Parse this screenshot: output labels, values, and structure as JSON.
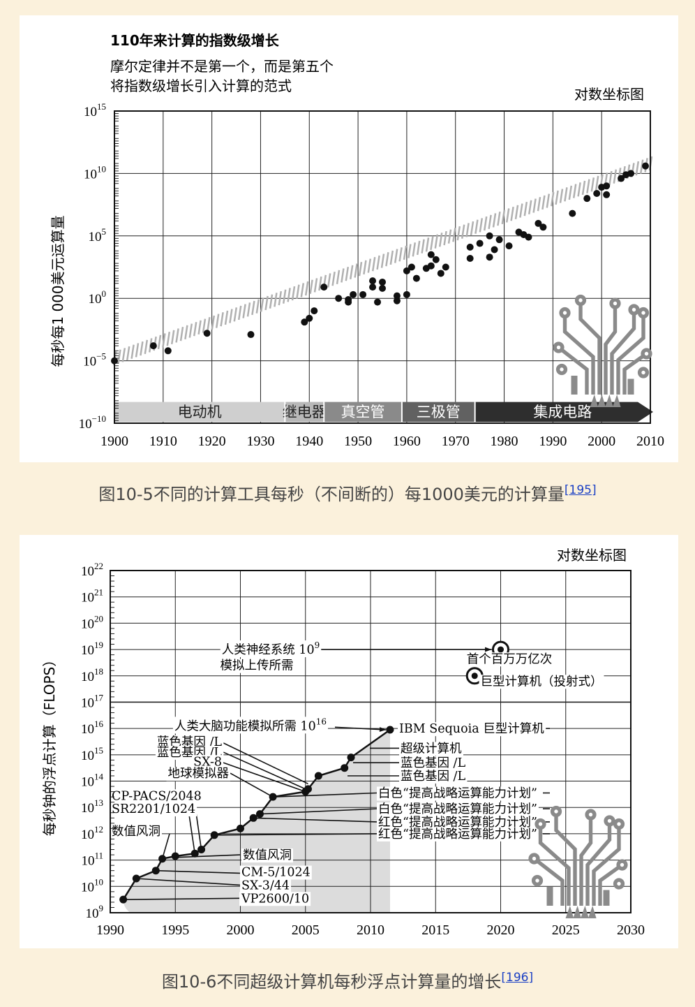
{
  "chart_data": [
    {
      "type": "scatter",
      "title": "110年来计算的指数级增长",
      "subtitle": [
        "摩尔定律并不是第一个，而是第五个",
        "将指数级增长引入计算的范式"
      ],
      "scale_note": "对数坐标图",
      "ylabel": "每秒每1 000美元运算量",
      "xlabel": "",
      "y_scale": "log",
      "grid": true,
      "xlim": [
        1900,
        2010
      ],
      "x_ticks": [
        "1900",
        "1910",
        "1920",
        "1930",
        "1940",
        "1950",
        "1960",
        "1970",
        "1980",
        "1990",
        "2000",
        "2010"
      ],
      "ylim_exp": [
        -10,
        15
      ],
      "y_ticks": [
        {
          "exp": 15,
          "label_base": "10",
          "label_exp": "15"
        },
        {
          "exp": 10,
          "label_base": "10",
          "label_exp": "10"
        },
        {
          "exp": 5,
          "label_base": "10",
          "label_exp": "5"
        },
        {
          "exp": 0,
          "label_base": "10",
          "label_exp": "0"
        },
        {
          "exp": -5,
          "label_base": "10",
          "label_exp": "−5"
        },
        {
          "exp": -10,
          "label_base": "10",
          "label_exp": "−10"
        }
      ],
      "trend_exp": {
        "x": [
          1900,
          2010
        ],
        "y": [
          -4.8,
          10.8
        ]
      },
      "points_log10": [
        [
          1900,
          -5.0
        ],
        [
          1908,
          -3.8
        ],
        [
          1911,
          -4.2
        ],
        [
          1919,
          -2.8
        ],
        [
          1928,
          -2.9
        ],
        [
          1939,
          -1.9
        ],
        [
          1940,
          -1.6
        ],
        [
          1941,
          -1.0
        ],
        [
          1943,
          0.9
        ],
        [
          1946,
          0.0
        ],
        [
          1948,
          -0.1
        ],
        [
          1948,
          -0.3
        ],
        [
          1949,
          0.3
        ],
        [
          1951,
          0.3
        ],
        [
          1953,
          0.9
        ],
        [
          1953,
          1.4
        ],
        [
          1954,
          -0.3
        ],
        [
          1955,
          0.8
        ],
        [
          1955,
          1.3
        ],
        [
          1958,
          -0.2
        ],
        [
          1958,
          0.2
        ],
        [
          1960,
          2.2
        ],
        [
          1960,
          0.3
        ],
        [
          1961,
          2.5
        ],
        [
          1962,
          1.6
        ],
        [
          1964,
          2.4
        ],
        [
          1965,
          2.6
        ],
        [
          1965,
          3.5
        ],
        [
          1966,
          3.1
        ],
        [
          1967,
          2.0
        ],
        [
          1968,
          2.5
        ],
        [
          1973,
          4.1
        ],
        [
          1973,
          3.2
        ],
        [
          1975,
          4.4
        ],
        [
          1977,
          3.3
        ],
        [
          1977,
          5.0
        ],
        [
          1978,
          3.9
        ],
        [
          1979,
          4.7
        ],
        [
          1981,
          4.2
        ],
        [
          1983,
          5.3
        ],
        [
          1984,
          5.1
        ],
        [
          1985,
          4.9
        ],
        [
          1987,
          6.0
        ],
        [
          1988,
          5.7
        ],
        [
          1994,
          6.8
        ],
        [
          1997,
          8.0
        ],
        [
          1999,
          8.4
        ],
        [
          2000,
          8.9
        ],
        [
          2001,
          8.3
        ],
        [
          2001,
          9.0
        ],
        [
          2004,
          9.6
        ],
        [
          2005,
          9.9
        ],
        [
          2006,
          10.0
        ],
        [
          2009,
          10.6
        ]
      ],
      "eras": [
        {
          "label": "电动机",
          "from": 1900,
          "to": 1935,
          "color": "#cfcfcf",
          "text_color": "#222222"
        },
        {
          "label": "继电器",
          "from": 1935,
          "to": 1943,
          "color": "#b8b8b8",
          "text_color": "#222222"
        },
        {
          "label": "真空管",
          "from": 1943,
          "to": 1959,
          "color": "#8a8a8a",
          "text_color": "#ffffff"
        },
        {
          "label": "三极管",
          "from": 1959,
          "to": 1974,
          "color": "#616161",
          "text_color": "#ffffff"
        },
        {
          "label": "集成电路",
          "from": 1974,
          "to": 2010,
          "color": "#2e2e2e",
          "text_color": "#ffffff"
        }
      ]
    },
    {
      "type": "line",
      "scale_note": "对数坐标图",
      "ylabel": "每秒钟的浮点计算（FLOPS）",
      "xlabel": "",
      "y_scale": "log",
      "grid": true,
      "xlim": [
        1990,
        2030
      ],
      "x_ticks": [
        "1990",
        "1995",
        "2000",
        "2005",
        "2010",
        "2015",
        "2020",
        "2025",
        "2030"
      ],
      "ylim_exp": [
        9,
        22
      ],
      "y_ticks": [
        {
          "exp": 22,
          "label_base": "10",
          "label_exp": "22"
        },
        {
          "exp": 21,
          "label_base": "10",
          "label_exp": "21"
        },
        {
          "exp": 20,
          "label_base": "10",
          "label_exp": "20"
        },
        {
          "exp": 19,
          "label_base": "10",
          "label_exp": "19"
        },
        {
          "exp": 18,
          "label_base": "10",
          "label_exp": "18"
        },
        {
          "exp": 17,
          "label_base": "10",
          "label_exp": "17"
        },
        {
          "exp": 16,
          "label_base": "10",
          "label_exp": "16"
        },
        {
          "exp": 15,
          "label_base": "10",
          "label_exp": "15"
        },
        {
          "exp": 14,
          "label_base": "10",
          "label_exp": "14"
        },
        {
          "exp": 13,
          "label_base": "10",
          "label_exp": "13"
        },
        {
          "exp": 12,
          "label_base": "10",
          "label_exp": "12"
        },
        {
          "exp": 11,
          "label_base": "10",
          "label_exp": "11"
        },
        {
          "exp": 10,
          "label_base": "10",
          "label_exp": "10"
        },
        {
          "exp": 9,
          "label_base": "10",
          "label_exp": "9"
        }
      ],
      "series": [
        {
          "points_log10": [
            [
              1991.0,
              9.5
            ],
            [
              1992.0,
              10.3
            ],
            [
              1993.5,
              10.6
            ],
            [
              1994.0,
              11.05
            ],
            [
              1995.0,
              11.15
            ],
            [
              1996.5,
              11.25
            ],
            [
              1997.0,
              11.4
            ],
            [
              1998.0,
              11.95
            ],
            [
              2000.0,
              12.2
            ],
            [
              2001.0,
              12.6
            ],
            [
              2001.5,
              12.75
            ],
            [
              2002.5,
              13.4
            ],
            [
              2005.0,
              13.6
            ],
            [
              2005.2,
              13.7
            ],
            [
              2006.0,
              14.2
            ],
            [
              2008.0,
              14.5
            ],
            [
              2008.5,
              14.9
            ],
            [
              2011.5,
              15.95
            ]
          ]
        }
      ],
      "markers_target": [
        {
          "x": 2020,
          "y_exp": 19.0,
          "label": "首个百万万亿次"
        },
        {
          "x": 2018,
          "y_exp": 18.0,
          "label": "巨型计算机（投射式）"
        }
      ],
      "annotations_left": [
        {
          "text": "人类神经系统 10",
          "sup": "9"
        },
        {
          "text": "模拟上传所需",
          "sup": ""
        },
        {
          "text": "人类大脑功能模拟所需 10",
          "sup": "16"
        },
        {
          "text": "蓝色基因 /L",
          "sup": ""
        },
        {
          "text": "蓝色基因 /L",
          "sup": ""
        },
        {
          "text": "SX-8",
          "sup": ""
        },
        {
          "text": "地球模拟器",
          "sup": ""
        },
        {
          "text": "CP-PACS/2048",
          "sup": ""
        },
        {
          "text": "SR2201/1024",
          "sup": ""
        },
        {
          "text": "数值风洞",
          "sup": ""
        },
        {
          "text": "数值风洞",
          "sup": ""
        },
        {
          "text": "CM-5/1024",
          "sup": ""
        },
        {
          "text": "SX-3/44",
          "sup": ""
        },
        {
          "text": "VP2600/10",
          "sup": ""
        }
      ],
      "annotations_right": [
        "IBM Sequoia 巨型计算机",
        "超级计算机",
        "蓝色基因 /L",
        "蓝色基因 /L",
        "白色“提高战略运算能力计划”",
        "白色“提高战略运算能力计划”",
        "红色“提高战略运算能力计划”",
        "红色“提高战略运算能力计划”"
      ]
    }
  ],
  "captions": {
    "fig1": "图10-5不同的计算工具每秒（不间断的）每1000美元的计算量",
    "fig1_ref": "[195]",
    "fig2": "图10-6不同超级计算机每秒浮点计算量的增长",
    "fig2_ref": "[196]"
  },
  "colors": {
    "page_bg": "#fbf1dc",
    "panel_bg": "#ffffff",
    "ink": "#1a1a1a",
    "trend": "#b0b0b0",
    "fill": "#dcdcdc",
    "link": "#1a3fc4",
    "logo": "#8a8a8a"
  },
  "icons": [
    "circuit-tree-icon",
    "circuit-tree-icon"
  ]
}
